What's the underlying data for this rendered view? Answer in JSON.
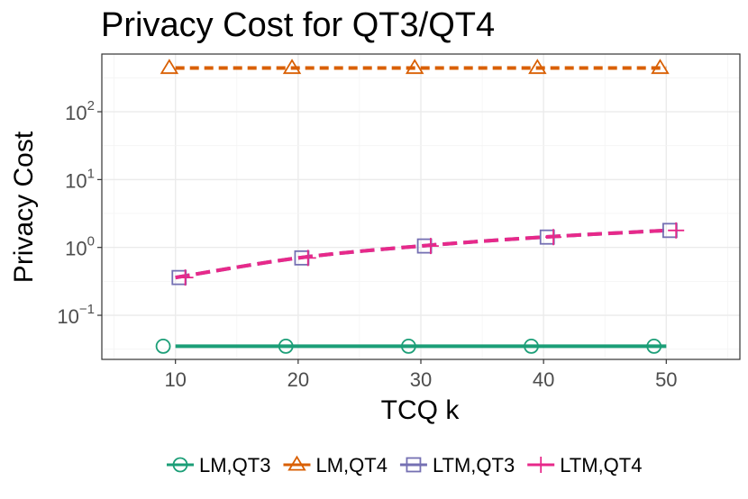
{
  "chart_data": {
    "type": "line",
    "title": "Privacy Cost for QT3/QT4",
    "xlabel": "TCQ k",
    "ylabel": "Privacy Cost",
    "x_scale": "linear",
    "y_scale": "log10",
    "xlim": [
      4,
      56
    ],
    "ylim_log10": [
      -1.65,
      2.85
    ],
    "x_ticks": [
      10,
      20,
      30,
      40,
      50
    ],
    "x_tick_labels": [
      "10",
      "20",
      "30",
      "40",
      "50"
    ],
    "y_ticks_log10": [
      -1,
      0,
      1,
      2
    ],
    "y_tick_labels": [
      {
        "base": "10",
        "exp": "−1"
      },
      {
        "base": "10",
        "exp": "0"
      },
      {
        "base": "10",
        "exp": "1"
      },
      {
        "base": "10",
        "exp": "2"
      }
    ],
    "grid": true,
    "legend_position": "bottom",
    "series": [
      {
        "name": "LM,QT3",
        "color": "#1b9e77",
        "marker": "circle",
        "line": "solid",
        "x": [
          10,
          20,
          30,
          40,
          50
        ],
        "marker_x": [
          9,
          19,
          29,
          39,
          49
        ],
        "y": [
          0.035,
          0.035,
          0.035,
          0.035,
          0.035
        ]
      },
      {
        "name": "LM,QT4",
        "color": "#d95f02",
        "marker": "triangle",
        "line": "dashed",
        "x": [
          10,
          20,
          30,
          40,
          50
        ],
        "marker_x": [
          9.5,
          19.5,
          29.5,
          39.5,
          49.5
        ],
        "y": [
          440,
          440,
          440,
          440,
          440
        ]
      },
      {
        "name": "LTM,QT3",
        "color": "#7570b3",
        "marker": "square",
        "line": "dashed",
        "x": [
          10,
          20,
          30,
          40,
          50
        ],
        "marker_x": [
          10.3,
          20.3,
          30.3,
          40.3,
          50.3
        ],
        "y": [
          0.36,
          0.7,
          1.05,
          1.42,
          1.78
        ]
      },
      {
        "name": "LTM,QT4",
        "color": "#e7298a",
        "marker": "plus",
        "line": "dashed",
        "x": [
          10,
          20,
          30,
          40,
          50
        ],
        "marker_x": [
          10.8,
          20.8,
          30.8,
          40.8,
          50.8
        ],
        "y": [
          0.36,
          0.7,
          1.05,
          1.42,
          1.78
        ]
      }
    ]
  }
}
